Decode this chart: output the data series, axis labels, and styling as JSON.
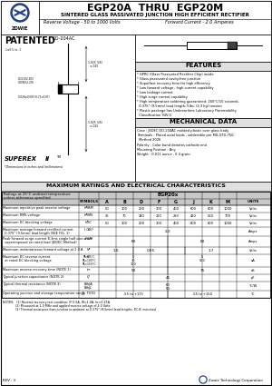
{
  "title_main": "EGP20A  THRU  EGP20M",
  "title_sub": "SINTERED GLASS PASSIVATED JUNCTION HIGH EFFICIENT RECTIFIER",
  "subtitle_left": "Reverse Voltage - 50 to 1000 Volts",
  "subtitle_right": "Forward Current - 2.0 Amperes",
  "features_title": "FEATURES",
  "features": [
    "GPRC (Glass Passivated Rectifier Chip) inside",
    "Glass passivated cavity-free junction",
    "Superfast recovery time for high efficiency",
    "Low forward voltage , high current capability",
    "Low leakage current",
    "High surge current capability",
    "High temperature soldering guaranteed: 260°C/10 seconds,",
    "  0.375\" (9.5mm) lead length, 5lbs. (2.3 kg) tension",
    "Plastic package has Underwriters Laboratory Flammability",
    "  Classification 94V-0"
  ],
  "mech_title": "MECHANICAL DATA",
  "mech_data": [
    "Case : JEDEC DO-204AC molded plastic over glass body",
    "Terminals : Plated axial leads , solderable per MIL-STD-750,",
    "  Method 2026",
    "Polarity : Color band denotes cathode end",
    "Mounting Position : Any",
    "Weight : 0.011 ounce , 0.4 gram"
  ],
  "table_title": "MAXIMUM RATINGS AND ELECTRICAL CHARACTERISTICS",
  "col_parts": [
    "A",
    "B",
    "D",
    "F",
    "G",
    "J",
    "K",
    "M"
  ],
  "vrrm": [
    "50",
    "100",
    "200",
    "300",
    "400",
    "600",
    "800",
    "1000"
  ],
  "vrms": [
    "35",
    "70",
    "140",
    "210",
    "280",
    "420",
    "560",
    "700"
  ],
  "vdc": [
    "50",
    "100",
    "200",
    "300",
    "400",
    "600",
    "800",
    "1000"
  ],
  "notes": [
    "NOTES:   (1) Reverse recovery test condition: IF 0.5A, IR=1.0A, Irr=0.25A",
    "              (2) Measured at 1.0 MHz and applied reverse voltage of 4.0 Volts",
    "              (3) Thermal resistance from junction to ambient at 0.375\" (9.5mm) lead lengths, P.C.B. mounted"
  ],
  "rev": "REV : 3",
  "company": "Zowie Technology Corporation",
  "bg_color": "#ffffff",
  "gray_bg": "#e0e0e0",
  "dark_gray": "#c8c8c8"
}
